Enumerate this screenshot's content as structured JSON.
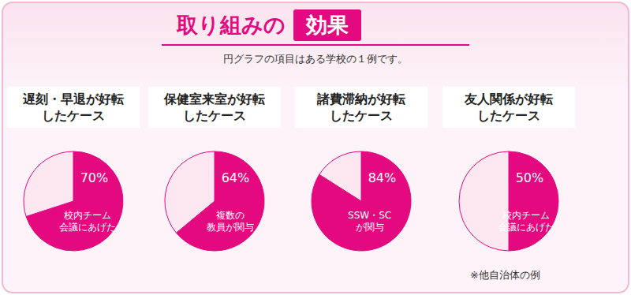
{
  "title": "取り組みの",
  "title_highlight": "効果",
  "subtitle": "円グラフの項目はある学校の１例です。",
  "note": "※他自治体の例",
  "chart_data": [
    {
      "type": "pie",
      "title": "遅刻・早退が好転\nしたケース",
      "categories": [
        "校内チーム\n会議にあげた",
        null
      ],
      "values": [
        70,
        30
      ],
      "value_labels": [
        "70%",
        null
      ],
      "colors": [
        "#e4097e",
        "#fde8f2"
      ]
    },
    {
      "type": "pie",
      "title": "保健室来室が好転\nしたケース",
      "categories": [
        "複数の\n教員が関与",
        null
      ],
      "values": [
        64,
        36
      ],
      "value_labels": [
        "64%",
        null
      ],
      "colors": [
        "#e4097e",
        "#fde8f2"
      ]
    },
    {
      "type": "pie",
      "title": "諸費滞納が好転\nしたケース",
      "categories": [
        "SSW・SC\nが関与",
        null
      ],
      "values": [
        84,
        16
      ],
      "value_labels": [
        "84%",
        null
      ],
      "colors": [
        "#e4097e",
        "#fde8f2"
      ]
    },
    {
      "type": "pie",
      "title": "友人関係が好転\nしたケース",
      "categories": [
        "校内チーム\n会議にあげた",
        null
      ],
      "values": [
        50,
        50
      ],
      "value_labels": [
        "50%",
        null
      ],
      "colors": [
        "#e4097e",
        "#fde8f2"
      ]
    }
  ]
}
